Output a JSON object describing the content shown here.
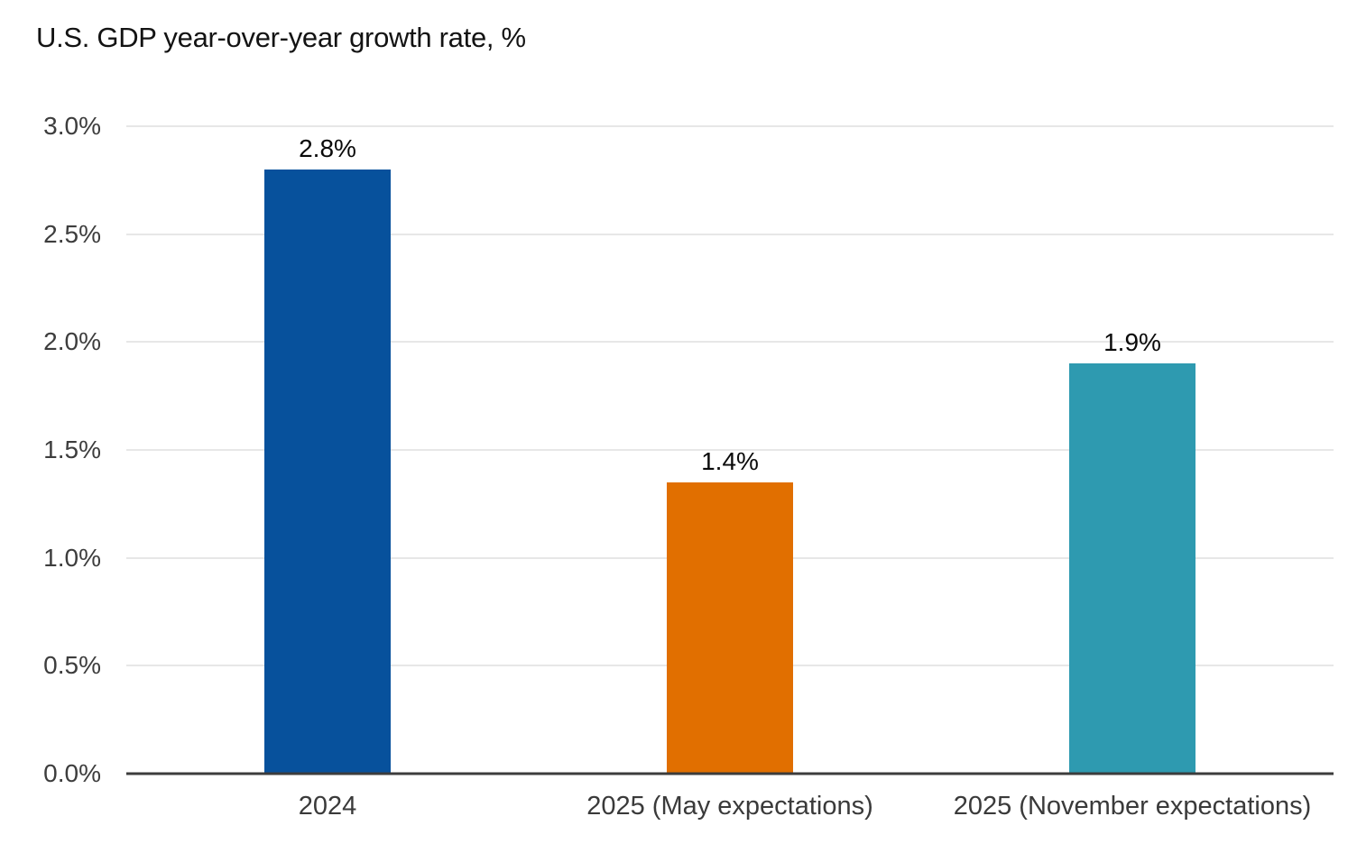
{
  "title": "U.S. GDP year-over-year growth rate, %",
  "chart_data": {
    "type": "bar",
    "title": "U.S. GDP year-over-year growth rate, %",
    "categories": [
      "2024",
      "2025 (May expectations)",
      "2025 (November expectations)"
    ],
    "values": [
      2.8,
      1.4,
      1.9
    ],
    "drawn_values": [
      2.8,
      1.35,
      1.9
    ],
    "data_labels": [
      "2.8%",
      "1.4%",
      "1.9%"
    ],
    "bar_colors": [
      "#07519C",
      "#E16F00",
      "#2E9AB0"
    ],
    "xlabel": "",
    "ylabel": "",
    "ylim": [
      0,
      3.0
    ],
    "ytick_interval": 0.5,
    "ytick_labels": [
      "0.0%",
      "0.5%",
      "1.0%",
      "1.5%",
      "2.0%",
      "2.5%",
      "3.0%"
    ],
    "grid": "horizontal-gridlines-on",
    "legend": "none"
  },
  "colors": {
    "background": "#ffffff",
    "gridline": "#e7e7e7",
    "axis_line": "#3c3c3c",
    "tick_text": "#3d3d3d",
    "title_text": "#131313",
    "data_label_text": "#0a0a0a"
  }
}
